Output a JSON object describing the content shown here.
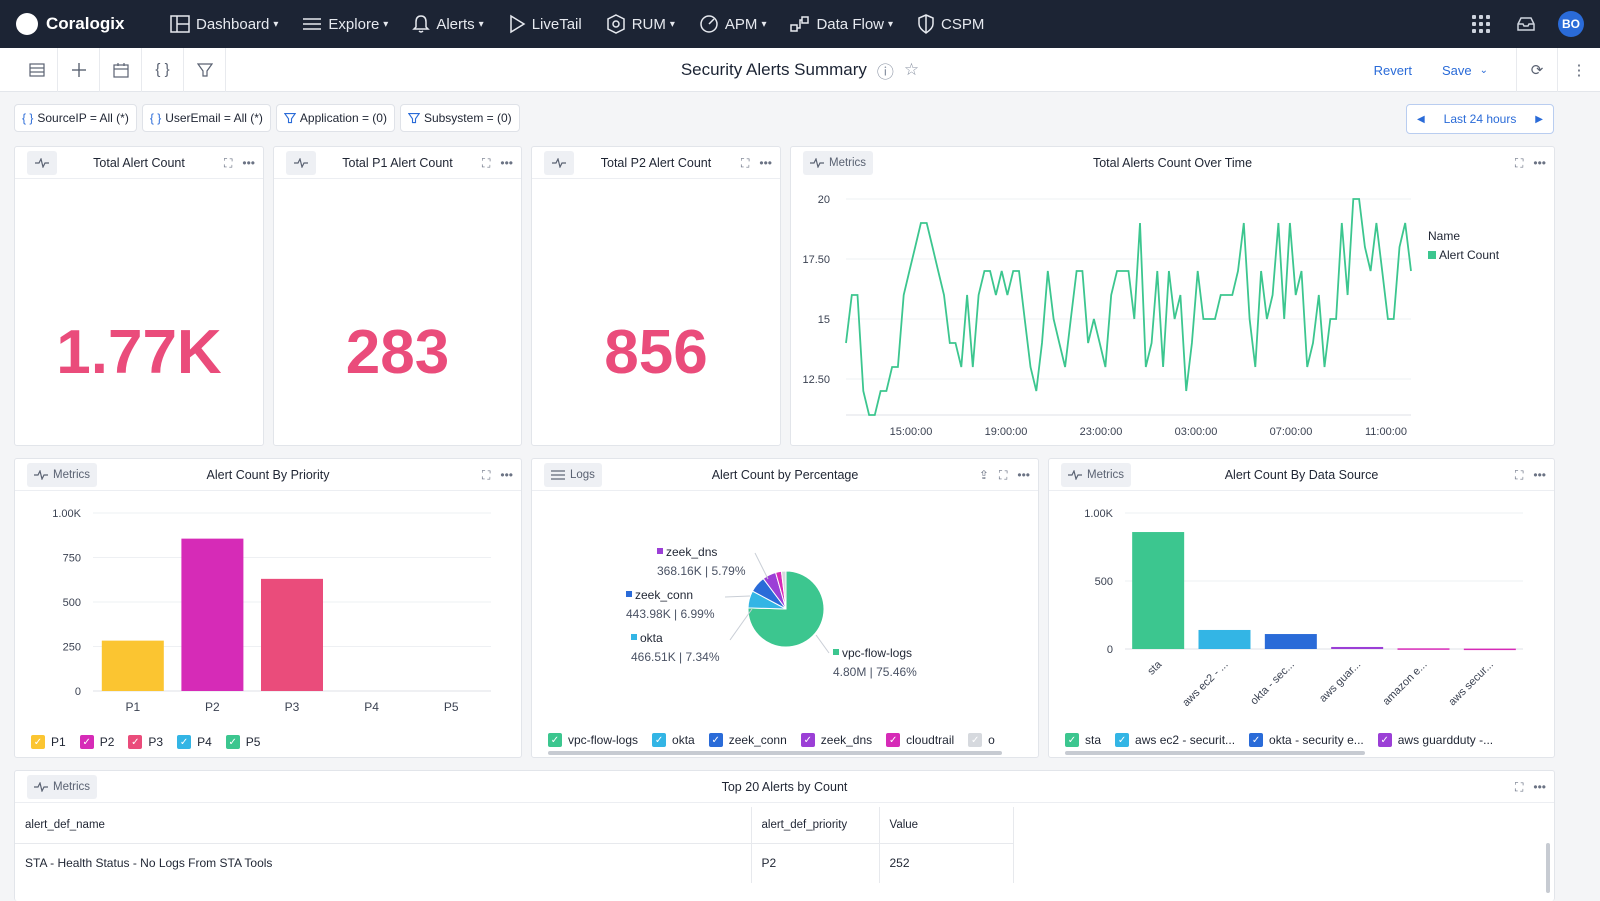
{
  "nav": {
    "brand": "Coralogix",
    "items": [
      {
        "label": "Dashboard",
        "icon": "dashboard-icon",
        "caret": true
      },
      {
        "label": "Explore",
        "icon": "explore-icon",
        "caret": true
      },
      {
        "label": "Alerts",
        "icon": "bell-icon",
        "caret": true
      },
      {
        "label": "LiveTail",
        "icon": "play-icon",
        "caret": false
      },
      {
        "label": "RUM",
        "icon": "rum-icon",
        "caret": true
      },
      {
        "label": "APM",
        "icon": "gauge-icon",
        "caret": true
      },
      {
        "label": "Data Flow",
        "icon": "dataflow-icon",
        "caret": true
      },
      {
        "label": "CSPM",
        "icon": "shield-icon",
        "caret": false
      }
    ],
    "avatar": "BO"
  },
  "toolbar": {
    "title": "Security Alerts Summary",
    "revert": "Revert",
    "save": "Save"
  },
  "filters": [
    {
      "label": "SourceIP = All (*)",
      "icon": "braces-icon"
    },
    {
      "label": "UserEmail = All (*)",
      "icon": "braces-icon"
    },
    {
      "label": "Application = (0)",
      "icon": "funnel-icon"
    },
    {
      "label": "Subsystem = (0)",
      "icon": "funnel-icon"
    }
  ],
  "time_range": "Last 24 hours",
  "stats": [
    {
      "title": "Total Alert Count",
      "value": "1.77K"
    },
    {
      "title": "Total P1 Alert Count",
      "value": "283"
    },
    {
      "title": "Total P2 Alert Count",
      "value": "856"
    }
  ],
  "colors": {
    "accent": "#2a6bd8",
    "stat": "#ea4c7b",
    "green": "#3cc68f",
    "nav_bg": "#1c2434"
  },
  "chart_data": [
    {
      "type": "line",
      "panel_badge": "Metrics",
      "title": "Total Alerts Count Over Time",
      "legend_title": "Name",
      "ylim": [
        11,
        20
      ],
      "y_ticks": [
        "20",
        "17.50",
        "15",
        "12.50"
      ],
      "x_ticks": [
        "15:00:00",
        "19:00:00",
        "23:00:00",
        "03:00:00",
        "07:00:00",
        "11:00:00"
      ],
      "series": [
        {
          "name": "Alert Count",
          "color": "#3cc68f",
          "values": [
            14,
            16,
            16,
            12,
            11,
            11,
            12,
            12,
            13,
            13,
            16,
            17,
            18,
            19,
            19,
            18,
            17,
            16,
            14,
            14,
            13,
            16,
            13,
            16,
            17,
            17,
            16,
            17,
            16,
            17,
            17,
            15,
            13,
            12,
            14,
            17,
            15,
            14,
            13,
            15,
            17,
            17,
            14,
            15,
            14,
            13,
            16,
            17,
            17,
            17,
            15,
            19,
            13,
            14,
            17,
            13,
            17,
            15,
            16,
            12,
            14,
            17,
            15,
            15,
            15,
            16,
            16,
            16,
            17,
            19,
            15,
            13,
            17,
            15,
            16,
            19,
            15,
            19,
            16,
            17,
            13,
            14,
            16,
            13,
            15,
            15,
            19,
            16,
            20,
            20,
            18,
            17,
            19,
            17,
            15,
            15,
            18,
            19,
            17
          ]
        }
      ]
    },
    {
      "type": "bar",
      "panel_badge": "Metrics",
      "title": "Alert Count By Priority",
      "categories": [
        "P1",
        "P2",
        "P3",
        "P4",
        "P5"
      ],
      "values": [
        283,
        856,
        630,
        0,
        0
      ],
      "colors": [
        "#fbc531",
        "#d62bb7",
        "#ea4c7b",
        "#33b5e5",
        "#3cc68f"
      ],
      "ylim": [
        0,
        1000
      ],
      "y_ticks": [
        "1.00K",
        "750",
        "500",
        "250",
        "0"
      ],
      "legend": [
        "P1",
        "P2",
        "P3",
        "P4",
        "P5"
      ]
    },
    {
      "type": "pie",
      "panel_badge": "Logs",
      "title": "Alert Count by Percentage",
      "slices": [
        {
          "name": "vpc-flow-logs",
          "value": "4.80M",
          "percent": 75.46,
          "color": "#3cc68f"
        },
        {
          "name": "okta",
          "value": "466.51K",
          "percent": 7.34,
          "color": "#33b5e5"
        },
        {
          "name": "zeek_conn",
          "value": "443.98K",
          "percent": 6.99,
          "color": "#2a6bd8"
        },
        {
          "name": "zeek_dns",
          "value": "368.16K",
          "percent": 5.79,
          "color": "#9b3fd6"
        },
        {
          "name": "cloudtrail",
          "value": "",
          "percent": 2.5,
          "color": "#d62bb7"
        },
        {
          "name": "o",
          "value": "",
          "percent": 1.92,
          "color": "#d6d9de"
        }
      ],
      "legend": [
        "vpc-flow-logs",
        "okta",
        "zeek_conn",
        "zeek_dns",
        "cloudtrail",
        "o"
      ]
    },
    {
      "type": "bar",
      "panel_badge": "Metrics",
      "title": "Alert Count By Data Source",
      "categories": [
        "sta",
        "aws ec2 - ...",
        "okta - sec...",
        "aws guar...",
        "amazon e...",
        "aws secur..."
      ],
      "values": [
        860,
        140,
        110,
        15,
        5,
        3
      ],
      "colors": [
        "#3cc68f",
        "#33b5e5",
        "#2a6bd8",
        "#9b3fd6",
        "#d62bb7",
        "#d62bb7"
      ],
      "ylim": [
        0,
        1000
      ],
      "y_ticks": [
        "1.00K",
        "500",
        "0"
      ],
      "legend": [
        "sta",
        "aws ec2 - securit...",
        "okta - security e...",
        "aws guardduty -..."
      ]
    }
  ],
  "table": {
    "badge": "Metrics",
    "title": "Top 20 Alerts by Count",
    "columns": [
      "alert_def_name",
      "alert_def_priority",
      "Value"
    ],
    "rows": [
      [
        "STA - Health Status - No Logs From STA Tools",
        "P2",
        "252"
      ]
    ]
  }
}
